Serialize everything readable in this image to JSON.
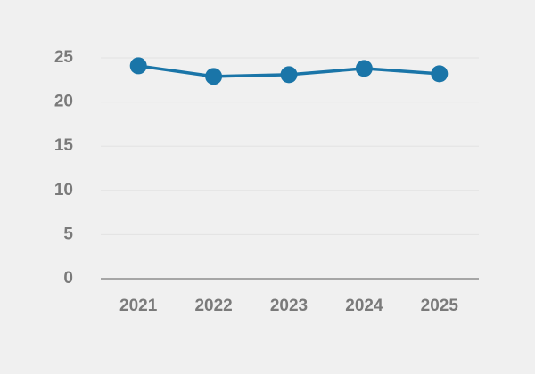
{
  "chart_data": {
    "type": "line",
    "categories": [
      "2021",
      "2022",
      "2023",
      "2024",
      "2025"
    ],
    "values": [
      24.1,
      22.9,
      23.1,
      23.8,
      23.2
    ],
    "color": "#1a75a8",
    "ylim": [
      0,
      25
    ],
    "yticks": [
      0,
      5,
      10,
      15,
      20,
      25
    ],
    "grid": true
  }
}
